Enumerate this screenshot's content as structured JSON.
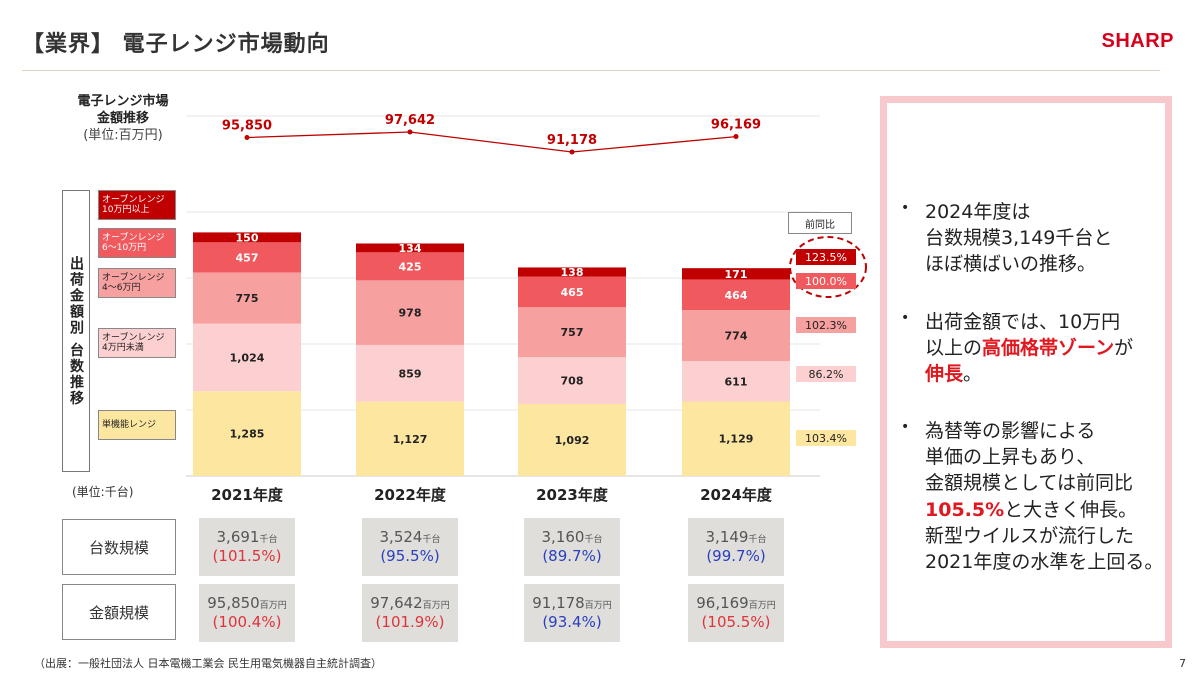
{
  "header": {
    "title": "【業界】 電子レンジ市場動向",
    "brand": "SHARP"
  },
  "market": {
    "title": "電子レンジ市場\n金額推移",
    "unit": "(単位:百万円)"
  },
  "vertical_label": "出荷金額別 台数推移",
  "unit_label": "(単位:千台)",
  "legend": [
    {
      "label": "オーブンレンジ\n10万円以上",
      "color": "#c00000",
      "text_color": "#ffffff"
    },
    {
      "label": "オーブンレンジ\n6～10万円",
      "color": "#f05a5e",
      "text_color": "#ffffff"
    },
    {
      "label": "オーブンレンジ\n4～6万円",
      "color": "#f6a0a0",
      "text_color": "#222222"
    },
    {
      "label": "オーブンレンジ\n4万円未満",
      "color": "#fcd0d0",
      "text_color": "#222222"
    },
    {
      "label": "単機能レンジ",
      "color": "#fde7a0",
      "text_color": "#222222"
    }
  ],
  "yoy": {
    "header": "前同比",
    "items": [
      {
        "label": "123.5%",
        "bg": "#c00000",
        "fg": "#ffffff"
      },
      {
        "label": "100.0%",
        "bg": "#f05a5e",
        "fg": "#ffffff"
      },
      {
        "label": "102.3%",
        "bg": "#f6a0a0",
        "fg": "#222222"
      },
      {
        "label": "86.2%",
        "bg": "#fcd0d0",
        "fg": "#222222"
      },
      {
        "label": "103.4%",
        "bg": "#fde7a0",
        "fg": "#222222"
      }
    ]
  },
  "rows": {
    "units_label": "台数規模",
    "amount_label": "金額規模"
  },
  "cells": {
    "units": [
      {
        "value": "3,691",
        "unit": "千台",
        "pct": "(101.5%)",
        "pct_color": "red"
      },
      {
        "value": "3,524",
        "unit": "千台",
        "pct": "(95.5%)",
        "pct_color": "blue"
      },
      {
        "value": "3,160",
        "unit": "千台",
        "pct": "(89.7%)",
        "pct_color": "blue"
      },
      {
        "value": "3,149",
        "unit": "千台",
        "pct": "(99.7%)",
        "pct_color": "blue"
      }
    ],
    "amount": [
      {
        "value": "95,850",
        "unit": "百万円",
        "pct": "(100.4%)",
        "pct_color": "red"
      },
      {
        "value": "97,642",
        "unit": "百万円",
        "pct": "(101.9%)",
        "pct_color": "red"
      },
      {
        "value": "91,178",
        "unit": "百万円",
        "pct": "(93.4%)",
        "pct_color": "blue"
      },
      {
        "value": "96,169",
        "unit": "百万円",
        "pct": "(105.5%)",
        "pct_color": "red"
      }
    ]
  },
  "callout": {
    "b1": "2024年度は\n台数規模3,149千台と\nほぼ横ばいの推移。",
    "b2_pre": "出荷金額では、10万円\n以上の",
    "b2_hl": "高価格帯ゾーン",
    "b2_mid": "が\n",
    "b2_hl2": "伸長",
    "b2_post": "。",
    "b3_pre": "為替等の影響による\n単価の上昇もあり、\n金額規模としては前同比\n",
    "b3_hl": "105.5%",
    "b3_post": "と大きく伸長。\n新型ウイルスが流行した\n2021年度の水準を上回る。"
  },
  "source": "（出展：一般社団法人 日本電機工業会 民生用電気機器自主統計調査）",
  "page_number": "7",
  "chart_data": [
    {
      "type": "line",
      "title": "電子レンジ市場 金額推移",
      "ylabel": "(単位:百万円)",
      "categories": [
        "2021年度",
        "2022年度",
        "2023年度",
        "2024年度"
      ],
      "series": [
        {
          "values": [
            95850,
            97642,
            91178,
            96169
          ]
        }
      ],
      "data_labels": [
        "95,850",
        "97,642",
        "91,178",
        "96,169"
      ],
      "color": "#c00000"
    },
    {
      "type": "bar",
      "stacked": true,
      "title": "出荷金額別 台数推移",
      "ylabel": "(単位:千台)",
      "categories": [
        "2021年度",
        "2022年度",
        "2023年度",
        "2024年度"
      ],
      "series": [
        {
          "name": "単機能レンジ",
          "values": [
            1285,
            1127,
            1092,
            1129
          ],
          "color": "#fde7a0",
          "text_color": "#222222"
        },
        {
          "name": "オーブンレンジ 4万円未満",
          "values": [
            1024,
            859,
            708,
            611
          ],
          "color": "#fcd0d0",
          "text_color": "#222222"
        },
        {
          "name": "オーブンレンジ 4～6万円",
          "values": [
            775,
            978,
            757,
            774
          ],
          "color": "#f6a0a0",
          "text_color": "#222222"
        },
        {
          "name": "オーブンレンジ 6～10万円",
          "values": [
            457,
            425,
            465,
            464
          ],
          "color": "#f05a5e",
          "text_color": "#ffffff"
        },
        {
          "name": "オーブンレンジ 10万円以上",
          "values": [
            150,
            134,
            138,
            171
          ],
          "color": "#c00000",
          "text_color": "#ffffff"
        }
      ],
      "grid": true,
      "legend": "left"
    }
  ]
}
